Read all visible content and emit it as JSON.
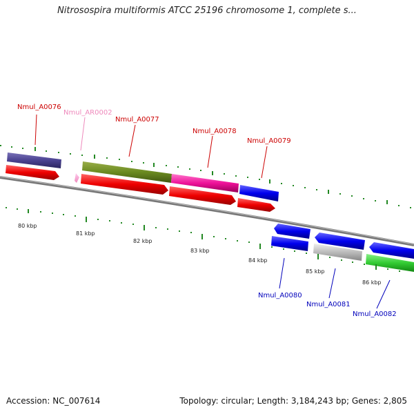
{
  "title": "Nitrosospira multiformis ATCC 25196 chromosome 1, complete s...",
  "footer": {
    "accession": "Accession: NC_007614",
    "summary": "Topology: circular; Length: 3,184,243 bp; Genes: 2,805"
  },
  "ticks": [
    "80 kbp",
    "81 kbp",
    "82 kbp",
    "83 kbp",
    "84 kbp",
    "85 kbp",
    "86 kbp"
  ],
  "genes": [
    {
      "id": "Nmul_A0076",
      "color": "#cc0000"
    },
    {
      "id": "Nmul_AR0002",
      "color": "#ee88bb"
    },
    {
      "id": "Nmul_A0077",
      "color": "#cc0000"
    },
    {
      "id": "Nmul_A0078",
      "color": "#cc0000"
    },
    {
      "id": "Nmul_A0079",
      "color": "#cc0000"
    },
    {
      "id": "Nmul_A0080",
      "color": "#0000bb"
    },
    {
      "id": "Nmul_A0081",
      "color": "#0000bb"
    },
    {
      "id": "Nmul_A0082",
      "color": "#0000bb"
    }
  ],
  "colors": {
    "cds": "#ee0000",
    "trna": "#ff88cc",
    "forward_gene": "#ee0000",
    "reverse_gene": "#0000ee",
    "backbone": "#777777",
    "gc_dots": "#228822"
  }
}
